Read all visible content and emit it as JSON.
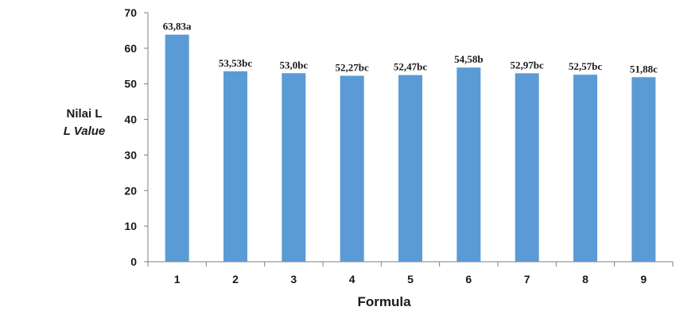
{
  "chart_data": {
    "type": "bar",
    "categories": [
      "1",
      "2",
      "3",
      "4",
      "5",
      "6",
      "7",
      "8",
      "9"
    ],
    "values": [
      63.83,
      53.53,
      53.0,
      52.27,
      52.47,
      54.58,
      52.97,
      52.57,
      51.88
    ],
    "data_labels": [
      "63,83a",
      "53,53bc",
      "53,0bc",
      "52,27bc",
      "52,47bc",
      "54,58b",
      "52,97bc",
      "52,57bc",
      "51,88c"
    ],
    "xlabel": "Formula",
    "ylabel": "Nilai L",
    "ylabel_secondary": "L Value",
    "ylim": [
      0,
      70
    ],
    "yticks": [
      0,
      10,
      20,
      30,
      40,
      50,
      60,
      70
    ],
    "grid": false,
    "bar_color": "#5b9bd5"
  }
}
